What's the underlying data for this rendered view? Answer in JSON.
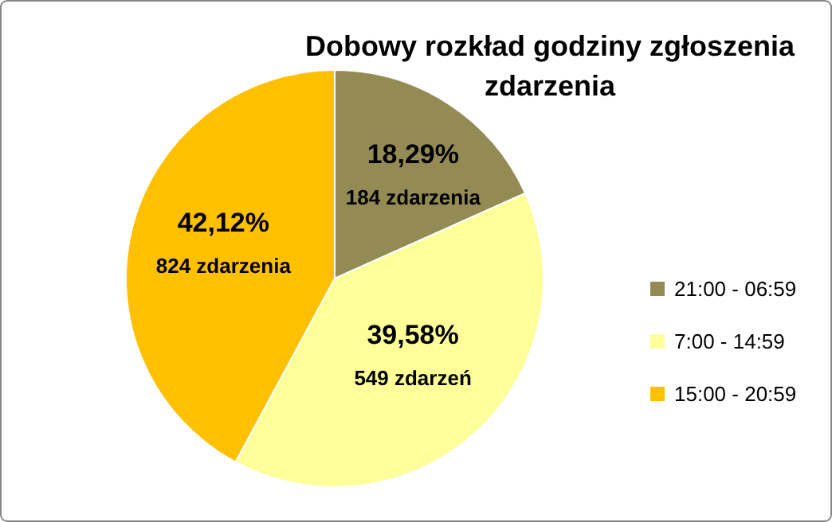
{
  "chart_data": {
    "type": "pie",
    "title": "Dobowy rozkład godziny zgłoszenia zdarzenia",
    "categories": [
      "21:00 - 06:59",
      "7:00 - 14:59",
      "15:00 - 20:59"
    ],
    "values": [
      18.29,
      39.58,
      42.12
    ],
    "colors": [
      "#948a54",
      "#ffff99",
      "#ffc000"
    ],
    "value_labels": [
      "18,29%\n184 zdarzenia",
      "39,58%\n549 zdarzeń",
      "42,12%\n824 zdarzenia"
    ],
    "legend": "right"
  }
}
